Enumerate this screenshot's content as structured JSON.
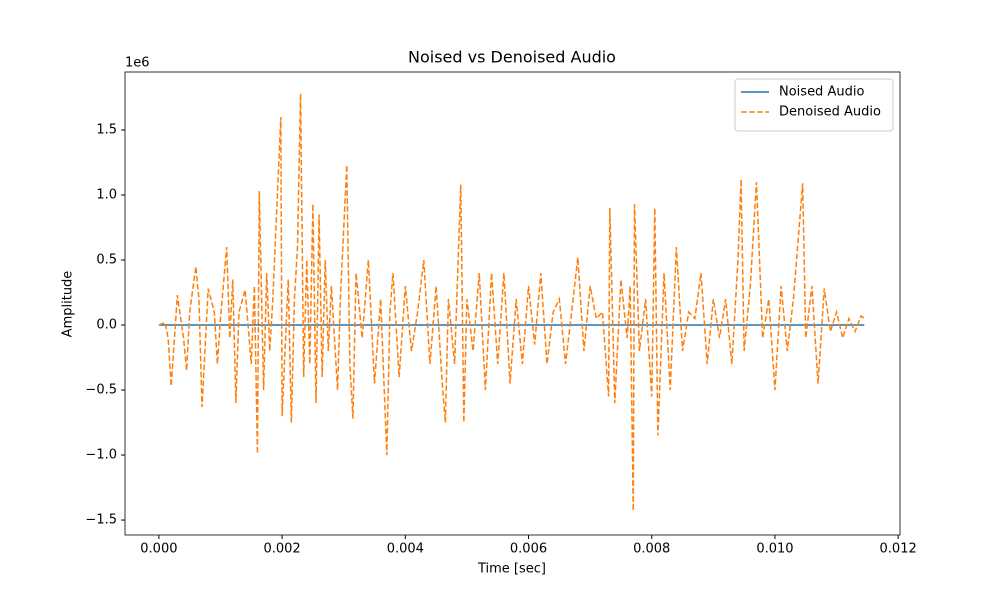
{
  "chart_data": {
    "type": "line",
    "title": "Noised vs Denoised Audio",
    "x_label": "Time [sec]",
    "y_label": "Amplitude",
    "y_offset_label": "1e6",
    "xlim": [
      -0.00055,
      0.01203
    ],
    "ylim": [
      -1.615,
      1.946
    ],
    "xticks": [
      {
        "value": 0,
        "label": "0.000"
      },
      {
        "value": 0.002,
        "label": "0.002"
      },
      {
        "value": 0.004,
        "label": "0.004"
      },
      {
        "value": 0.006,
        "label": "0.006"
      },
      {
        "value": 0.008,
        "label": "0.008"
      },
      {
        "value": 0.01,
        "label": "0.010"
      },
      {
        "value": 0.012,
        "label": "0.012"
      }
    ],
    "yticks": [
      {
        "value": -1.5,
        "label": "−1.5"
      },
      {
        "value": -1,
        "label": "−1.0"
      },
      {
        "value": -0.5,
        "label": "−0.5"
      },
      {
        "value": 0,
        "label": "0.0"
      },
      0.5,
      {
        "value": 1,
        "label": "1.0"
      },
      1.5
    ],
    "legend": "upper right",
    "grid": false,
    "series": [
      {
        "name": "Noised Audio",
        "color": "#1f77b4",
        "linestyle": "solid",
        "x": [
          0,
          0.01145
        ],
        "values": [
          0,
          0
        ]
      },
      {
        "name": "Denoised Audio",
        "color": "#ff7f0e",
        "linestyle": "dashed",
        "x": [
          0,
          0.0001,
          0.00015,
          0.0002,
          0.0003,
          0.0004,
          0.00045,
          0.0005,
          0.0006,
          0.00065,
          0.0007,
          0.0008,
          0.0009,
          0.00095,
          0.001,
          0.0011,
          0.00115,
          0.0012,
          0.00125,
          0.0013,
          0.0014,
          0.0015,
          0.00155,
          0.0016,
          0.00163,
          0.0017,
          0.00175,
          0.0018,
          0.00185,
          0.0019,
          0.00198,
          0.002,
          0.0021,
          0.00215,
          0.0022,
          0.00225,
          0.0023,
          0.00235,
          0.0024,
          0.00245,
          0.0025,
          0.00255,
          0.0026,
          0.00265,
          0.0027,
          0.00275,
          0.0028,
          0.0029,
          0.00295,
          0.00305,
          0.0031,
          0.00315,
          0.0032,
          0.0033,
          0.0034,
          0.0035,
          0.0036,
          0.0037,
          0.00375,
          0.0038,
          0.0039,
          0.004,
          0.0041,
          0.0042,
          0.0043,
          0.0044,
          0.0045,
          0.0046,
          0.00465,
          0.0047,
          0.0048,
          0.0049,
          0.00495,
          0.005,
          0.0051,
          0.0052,
          0.0053,
          0.0054,
          0.0055,
          0.0056,
          0.0057,
          0.0058,
          0.0059,
          0.006,
          0.0061,
          0.0062,
          0.0063,
          0.0064,
          0.0065,
          0.0066,
          0.0067,
          0.0068,
          0.0069,
          0.007,
          0.0071,
          0.0072,
          0.0073,
          0.00732,
          0.0074,
          0.0075,
          0.0076,
          0.00765,
          0.0077,
          0.00772,
          0.0078,
          0.0079,
          0.008,
          0.00805,
          0.0081,
          0.0082,
          0.0083,
          0.0084,
          0.0085,
          0.0086,
          0.0087,
          0.0088,
          0.0089,
          0.009,
          0.0091,
          0.0092,
          0.0093,
          0.0094,
          0.00945,
          0.0095,
          0.0096,
          0.0097,
          0.0098,
          0.0099,
          0.01,
          0.0101,
          0.0102,
          0.0103,
          0.01045,
          0.0105,
          0.0106,
          0.0107,
          0.0108,
          0.0109,
          0.011,
          0.0111,
          0.0112,
          0.0113,
          0.0114,
          0.01145
        ],
        "values": [
          0,
          0.02,
          -0.1,
          -0.47,
          0.23,
          -0.1,
          -0.35,
          0.1,
          0.45,
          0.2,
          -0.63,
          0.28,
          0.1,
          -0.3,
          0.05,
          0.6,
          -0.1,
          0.35,
          -0.6,
          0.1,
          0.27,
          -0.3,
          0.3,
          -0.99,
          1.03,
          -0.5,
          0.4,
          -0.2,
          0.2,
          0.75,
          1.6,
          -0.7,
          0.35,
          -0.75,
          0.2,
          0.6,
          1.78,
          -0.4,
          0.5,
          -0.3,
          0.93,
          -0.6,
          0.85,
          -0.4,
          0.5,
          -0.2,
          0.3,
          -0.5,
          0.25,
          1.23,
          -0.3,
          -0.72,
          0.4,
          -0.1,
          0.5,
          -0.45,
          0.2,
          -1.0,
          0.1,
          0.4,
          -0.4,
          0.3,
          -0.2,
          0.1,
          0.5,
          -0.3,
          0.3,
          -0.45,
          -0.75,
          0.2,
          -0.3,
          1.08,
          -0.75,
          0.2,
          -0.2,
          0.4,
          -0.5,
          0.4,
          -0.3,
          0.4,
          -0.45,
          0.2,
          -0.3,
          0.3,
          -0.15,
          0.4,
          -0.3,
          0.1,
          0.2,
          -0.3,
          0.1,
          0.52,
          -0.2,
          0.3,
          0.05,
          0.1,
          -0.55,
          0.9,
          -0.6,
          0.35,
          -0.1,
          0.3,
          -1.43,
          0.93,
          -0.2,
          0.2,
          -0.55,
          0.9,
          -0.85,
          0.4,
          -0.5,
          0.6,
          -0.2,
          0.1,
          0.05,
          0.4,
          -0.3,
          0.2,
          -0.1,
          0.2,
          -0.3,
          0.5,
          1.12,
          -0.2,
          0.3,
          1.1,
          -0.1,
          0.2,
          -0.5,
          0.3,
          -0.2,
          0.2,
          1.09,
          -0.1,
          0.3,
          -0.45,
          0.28,
          -0.05,
          0.1,
          -0.1,
          0.05,
          -0.05,
          0.07,
          0.05
        ]
      }
    ]
  }
}
